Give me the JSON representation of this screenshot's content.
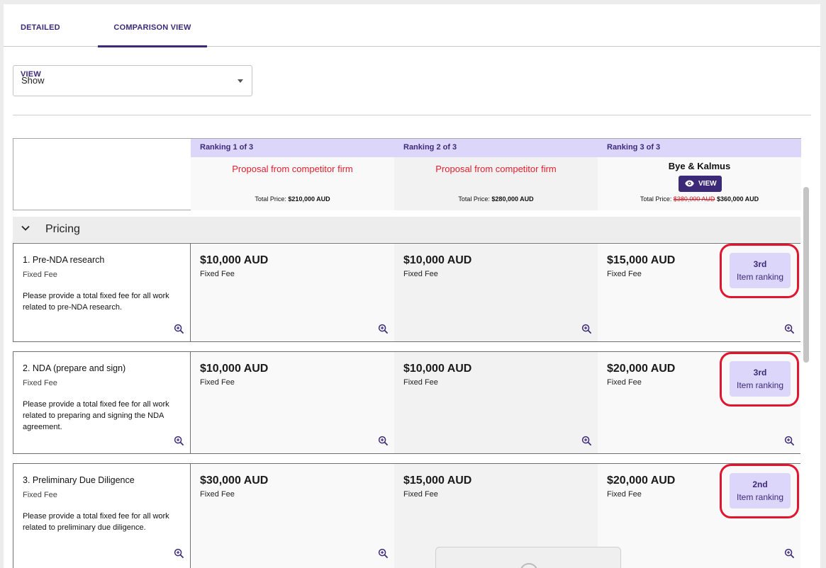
{
  "tabs": [
    {
      "label": "DETAILED VIEW"
    },
    {
      "label": "COMPARISON VIEW"
    }
  ],
  "filter": {
    "value": "Show"
  },
  "columns": [
    {
      "ranking": "Ranking 1 of 3",
      "firm": "Proposal from competitor firm",
      "total_label": "Total Price:",
      "total": "$210,000 AUD"
    },
    {
      "ranking": "Ranking 2 of 3",
      "firm": "Proposal from competitor firm",
      "total_label": "Total Price:",
      "total": "$280,000 AUD"
    },
    {
      "ranking": "Ranking 3 of 3",
      "firm": "Bye & Kalmus",
      "view_label": "VIEW",
      "total_label": "Total Price:",
      "old_total": "$380,000 AUD",
      "total": "$360,000 AUD"
    }
  ],
  "section": {
    "title": "Pricing"
  },
  "rows": [
    {
      "title": "1. Pre-NDA research",
      "subtitle": "Fixed Fee",
      "description": "Please provide a total fixed fee for all work related to pre-NDA research.",
      "cells": [
        {
          "amount": "$10,000 AUD",
          "fee": "Fixed Fee"
        },
        {
          "amount": "$10,000 AUD",
          "fee": "Fixed Fee"
        },
        {
          "amount": "$15,000 AUD",
          "fee": "Fixed Fee"
        }
      ],
      "rank": {
        "place": "3rd",
        "label": "Item ranking"
      }
    },
    {
      "title": "2. NDA (prepare and sign)",
      "subtitle": "Fixed Fee",
      "description": "Please provide a total fixed fee for all work related to preparing and signing the NDA agreement.",
      "cells": [
        {
          "amount": "$10,000 AUD",
          "fee": "Fixed Fee"
        },
        {
          "amount": "$10,000 AUD",
          "fee": "Fixed Fee"
        },
        {
          "amount": "$20,000 AUD",
          "fee": "Fixed Fee"
        }
      ],
      "rank": {
        "place": "3rd",
        "label": "Item ranking"
      }
    },
    {
      "title": "3. Preliminary Due Diligence",
      "subtitle": "Fixed Fee",
      "description": "Please provide a total fixed fee for all work related to preliminary due diligence.",
      "cells": [
        {
          "amount": "$30,000 AUD",
          "fee": "Fixed Fee"
        },
        {
          "amount": "$15,000 AUD",
          "fee": "Fixed Fee"
        },
        {
          "amount": "$20,000 AUD",
          "fee": "Fixed Fee"
        }
      ],
      "rank": {
        "place": "2nd",
        "label": "Item ranking"
      }
    }
  ],
  "colors": {
    "accent": "#3c2a78",
    "ranking_band": "#dcd6fb",
    "competitor_text": "#e21d2e",
    "highlight": "#e2152f"
  }
}
